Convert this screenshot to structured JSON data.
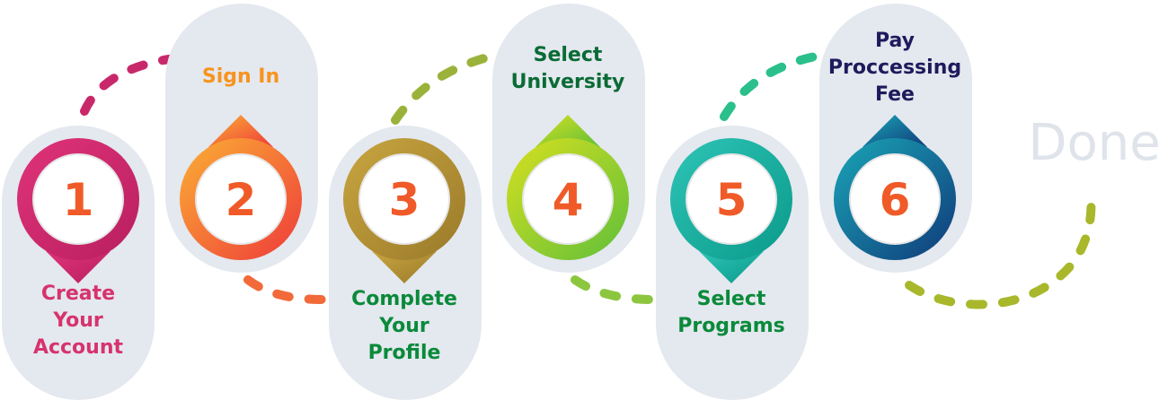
{
  "steps": [
    {
      "number": "1",
      "label_lines": [
        "Create",
        "Your",
        "Account"
      ],
      "label_color": "#d6336c",
      "ring_colors": [
        "#e0337a",
        "#b81f5e"
      ],
      "number_color": "#f05a28"
    },
    {
      "number": "2",
      "label_lines": [
        "Sign In"
      ],
      "label_color": "#f7941d",
      "ring_colors": [
        "#fbb034",
        "#ee3a3a"
      ],
      "number_color": "#f05a28"
    },
    {
      "number": "3",
      "label_lines": [
        "Complete",
        "Your",
        "Profile"
      ],
      "label_color": "#0a8a3a",
      "ring_colors": [
        "#c9a640",
        "#9a7a2a"
      ],
      "number_color": "#f05a28"
    },
    {
      "number": "4",
      "label_lines": [
        "Select",
        "University"
      ],
      "label_color": "#0a6b35",
      "ring_colors": [
        "#d7e020",
        "#5fbf3a"
      ],
      "number_color": "#f05a28"
    },
    {
      "number": "5",
      "label_lines": [
        "Select",
        "Programs"
      ],
      "label_color": "#0a8a3a",
      "ring_colors": [
        "#2ec4b6",
        "#0a9a8a"
      ],
      "number_color": "#f05a28"
    },
    {
      "number": "6",
      "label_lines": [
        "Pay",
        "Proccessing",
        "Fee"
      ],
      "label_color": "#1e1b5c",
      "ring_colors": [
        "#1aa6b7",
        "#103a7a"
      ],
      "number_color": "#f05a28"
    }
  ],
  "done_label": "Done",
  "colors": {
    "pill": "#e4e8ef",
    "done": "#dfe3ea",
    "connectors": [
      "#c8286a",
      "#f26a3a",
      "#9bb23a",
      "#8cc63f",
      "#2bbf8c",
      "#a8b82a"
    ]
  }
}
